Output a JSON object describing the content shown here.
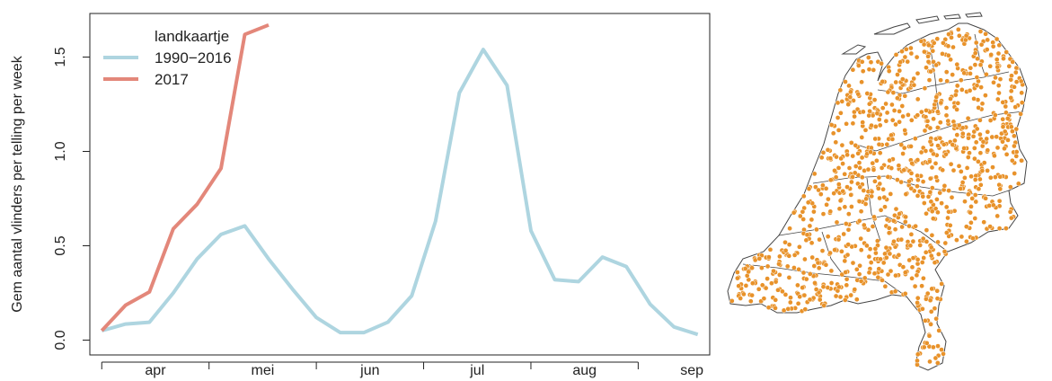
{
  "chart_data": {
    "type": "line",
    "ylabel": "Gem aantal vlinders per telling per week",
    "xlabel": "",
    "ylim": [
      0,
      1.75
    ],
    "yticks": [
      0.0,
      0.5,
      1.0,
      1.5
    ],
    "ytick_labels": [
      "0.0",
      "0.5",
      "1.0",
      "1.5"
    ],
    "x_weeks_range": [
      13.5,
      39.5
    ],
    "month_ticks": [
      14,
      18.5,
      23,
      27.5,
      32,
      36.5
    ],
    "month_labels": [
      {
        "label": "apr",
        "week": 16.25
      },
      {
        "label": "mei",
        "week": 20.75
      },
      {
        "label": "jun",
        "week": 25.25
      },
      {
        "label": "jul",
        "week": 29.75
      },
      {
        "label": "aug",
        "week": 34.25
      },
      {
        "label": "sep",
        "week": 38.75
      }
    ],
    "legend": {
      "title": "landkaartje",
      "position": "top-left"
    },
    "series": [
      {
        "name": "1990−2016",
        "color": "#aed5e0",
        "x": [
          14,
          15,
          16,
          17,
          18,
          19,
          20,
          21,
          22,
          23,
          24,
          25,
          26,
          27,
          28,
          29,
          30,
          31,
          32,
          33,
          34,
          35,
          36,
          37,
          38,
          39
        ],
        "values": [
          0.05,
          0.085,
          0.095,
          0.25,
          0.43,
          0.56,
          0.605,
          0.43,
          0.27,
          0.12,
          0.04,
          0.04,
          0.095,
          0.235,
          0.63,
          1.31,
          1.54,
          1.35,
          0.58,
          0.32,
          0.31,
          0.44,
          0.39,
          0.19,
          0.07,
          0.03
        ]
      },
      {
        "name": "2017",
        "color": "#e3877a",
        "x": [
          14,
          15,
          16,
          17,
          18,
          19,
          20,
          21
        ],
        "values": [
          0.05,
          0.185,
          0.255,
          0.59,
          0.72,
          0.91,
          1.62,
          1.67
        ]
      }
    ]
  },
  "map": {
    "dot_color": "#e8922a"
  }
}
